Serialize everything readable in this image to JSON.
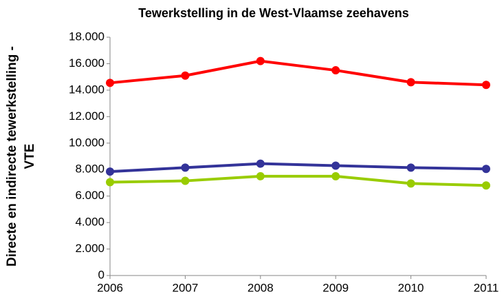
{
  "chart_data": {
    "type": "line",
    "title": "Tewerkstelling in de West-Vlaamse zeehavens",
    "ylabel": [
      "Directe en indirecte tewerkstelling -",
      "VTE"
    ],
    "x": [
      2006,
      2007,
      2008,
      2009,
      2010,
      2011
    ],
    "xlim": [
      2006,
      2011
    ],
    "xticks": [
      2006,
      2007,
      2008,
      2009,
      2010,
      2011
    ],
    "ylim": [
      0,
      18000
    ],
    "yticks": [
      0,
      {
        "value": 2000,
        "label": "2.000"
      },
      {
        "value": 4000,
        "label": "4.000"
      },
      {
        "value": 6000,
        "label": "6.000"
      },
      {
        "value": 8000,
        "label": "8.000"
      },
      {
        "value": 10000,
        "label": "10.000"
      },
      {
        "value": 12000,
        "label": "12.000"
      },
      {
        "value": 14000,
        "label": "14.000"
      },
      {
        "value": 16000,
        "label": "16.000"
      },
      {
        "value": 18000,
        "label": "18.000"
      }
    ],
    "grid": false,
    "series": [
      {
        "color": "#ff0000",
        "values": [
          14550,
          15100,
          16200,
          15500,
          14600,
          14400
        ]
      },
      {
        "color": "#333399",
        "values": [
          7850,
          8150,
          8450,
          8300,
          8150,
          8050
        ]
      },
      {
        "color": "#99cc00",
        "values": [
          7050,
          7150,
          7500,
          7500,
          6950,
          6800
        ]
      }
    ]
  }
}
